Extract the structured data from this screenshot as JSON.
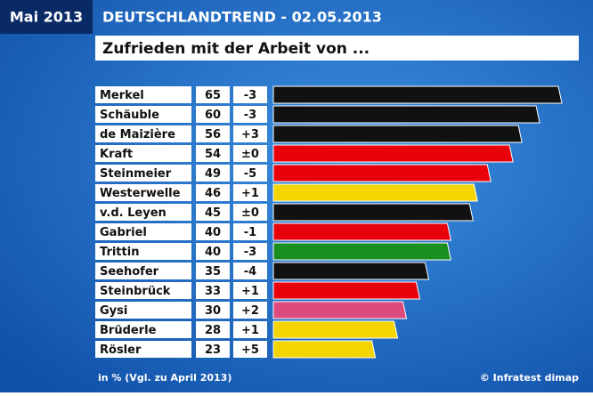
{
  "chart_data": {
    "type": "bar",
    "badge": "Mai 2013",
    "title": "DEUTSCHLANDTREND - 02.05.2013",
    "subtitle": "Zufrieden mit der Arbeit von ...",
    "categories": [
      "Merkel",
      "Schäuble",
      "de Maizière",
      "Kraft",
      "Steinmeier",
      "Westerwelle",
      "v.d. Leyen",
      "Gabriel",
      "Trittin",
      "Seehofer",
      "Steinbrück",
      "Gysi",
      "Brüderle",
      "Rösler"
    ],
    "values": [
      65,
      60,
      56,
      54,
      49,
      46,
      45,
      40,
      40,
      35,
      33,
      30,
      28,
      23
    ],
    "changes": [
      "-3",
      "-3",
      "+3",
      "±0",
      "-5",
      "+1",
      "±0",
      "-1",
      "-3",
      "-4",
      "+1",
      "+2",
      "+1",
      "+5"
    ],
    "colors": [
      "#111111",
      "#111111",
      "#111111",
      "#e8000a",
      "#e8000a",
      "#f5d500",
      "#111111",
      "#e8000a",
      "#1a8f1f",
      "#111111",
      "#e8000a",
      "#dd4a7c",
      "#f5d500",
      "#f5d500"
    ],
    "note": "in % (Vgl. zu April 2013)",
    "source": "© Infratest dimap"
  }
}
